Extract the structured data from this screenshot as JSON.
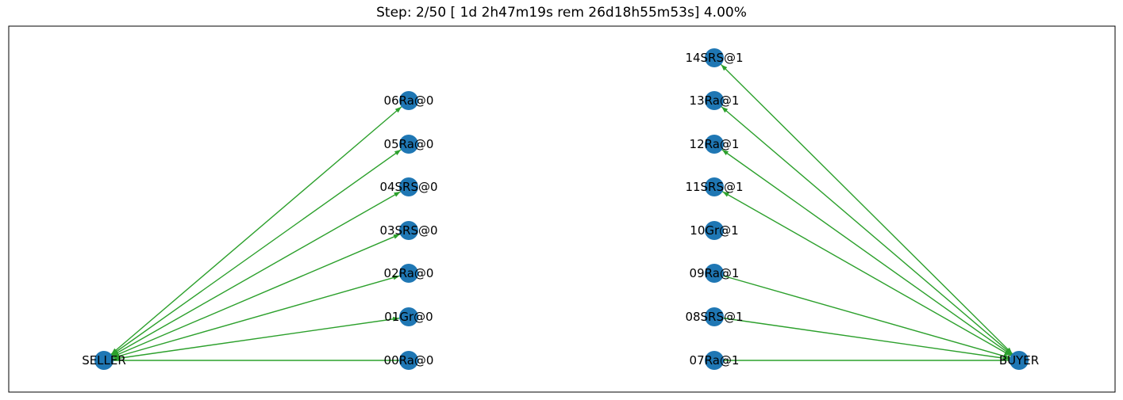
{
  "title": "Step: 2/50 [ 1d 2h47m19s rem 26d18h55m53s] 4.00%",
  "colors": {
    "node": "#1f77b4",
    "edge": "#2ca02c",
    "frame": "#000000"
  },
  "nodes": [
    {
      "id": "SELLER",
      "label": "SELLER"
    },
    {
      "id": "BUYER",
      "label": "BUYER"
    },
    {
      "id": "00Ra@0",
      "label": "00Ra@0"
    },
    {
      "id": "01Gr@0",
      "label": "01Gr@0"
    },
    {
      "id": "02Ra@0",
      "label": "02Ra@0"
    },
    {
      "id": "03SRS@0",
      "label": "03SRS@0"
    },
    {
      "id": "04SRS@0",
      "label": "04SRS@0"
    },
    {
      "id": "05Ra@0",
      "label": "05Ra@0"
    },
    {
      "id": "06Ra@0",
      "label": "06Ra@0"
    },
    {
      "id": "07Ra@1",
      "label": "07Ra@1"
    },
    {
      "id": "08SRS@1",
      "label": "08SRS@1"
    },
    {
      "id": "09Ra@1",
      "label": "09Ra@1"
    },
    {
      "id": "10Gr@1",
      "label": "10Gr@1"
    },
    {
      "id": "11SRS@1",
      "label": "11SRS@1"
    },
    {
      "id": "12Ra@1",
      "label": "12Ra@1"
    },
    {
      "id": "13Ra@1",
      "label": "13Ra@1"
    },
    {
      "id": "14SRS@1",
      "label": "14SRS@1"
    }
  ],
  "edges": [
    {
      "from": "SELLER",
      "to": "00Ra@0",
      "arrow_start": false,
      "arrow_end": false
    },
    {
      "from": "SELLER",
      "to": "01Gr@0",
      "arrow_start": true,
      "arrow_end": true
    },
    {
      "from": "SELLER",
      "to": "02Ra@0",
      "arrow_start": true,
      "arrow_end": true
    },
    {
      "from": "SELLER",
      "to": "03SRS@0",
      "arrow_start": true,
      "arrow_end": true
    },
    {
      "from": "SELLER",
      "to": "04SRS@0",
      "arrow_start": true,
      "arrow_end": true
    },
    {
      "from": "SELLER",
      "to": "05Ra@0",
      "arrow_start": true,
      "arrow_end": true
    },
    {
      "from": "SELLER",
      "to": "06Ra@0",
      "arrow_start": true,
      "arrow_end": true
    },
    {
      "from": "BUYER",
      "to": "07Ra@1",
      "arrow_start": false,
      "arrow_end": false
    },
    {
      "from": "BUYER",
      "to": "08SRS@1",
      "arrow_start": true,
      "arrow_end": false
    },
    {
      "from": "BUYER",
      "to": "09Ra@1",
      "arrow_start": true,
      "arrow_end": false
    },
    {
      "from": "BUYER",
      "to": "11SRS@1",
      "arrow_start": true,
      "arrow_end": true
    },
    {
      "from": "BUYER",
      "to": "12Ra@1",
      "arrow_start": true,
      "arrow_end": true
    },
    {
      "from": "BUYER",
      "to": "13Ra@1",
      "arrow_start": true,
      "arrow_end": true
    },
    {
      "from": "BUYER",
      "to": "14SRS@1",
      "arrow_start": true,
      "arrow_end": true
    }
  ]
}
